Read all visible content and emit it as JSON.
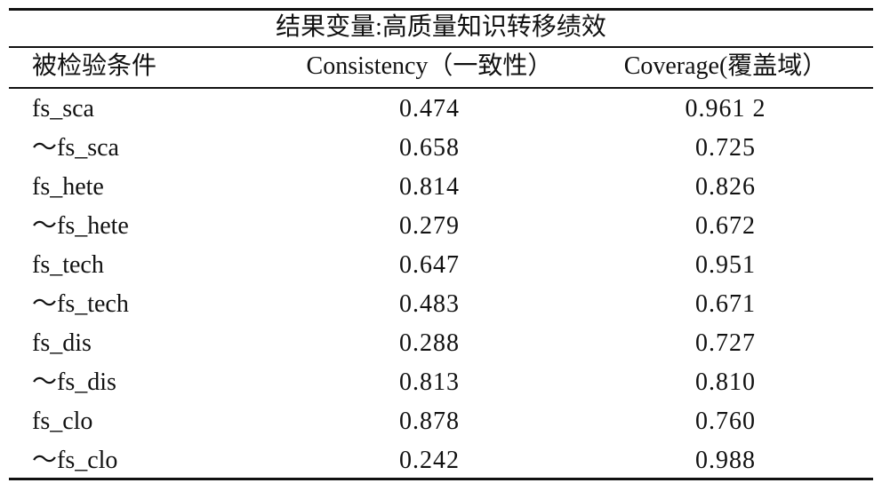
{
  "table": {
    "title": "结果变量:高质量知识转移绩效",
    "header": [
      "被检验条件",
      "Consistency（一致性）",
      "Coverage(覆盖域）"
    ],
    "rows": [
      [
        "fs_sca",
        "0.474",
        "0.961 2"
      ],
      [
        "～fs_sca",
        "0.658",
        "0.725"
      ],
      [
        "fs_hete",
        "0.814",
        "0.826"
      ],
      [
        "～fs_hete",
        "0.279",
        "0.672"
      ],
      [
        "fs_tech",
        "0.647",
        "0.951"
      ],
      [
        "～fs_tech",
        "0.483",
        "0.671"
      ],
      [
        "fs_dis",
        "0.288",
        "0.727"
      ],
      [
        "～fs_dis",
        "0.813",
        "0.810"
      ],
      [
        "fs_clo",
        "0.878",
        "0.760"
      ],
      [
        "～fs_clo",
        "0.242",
        "0.988"
      ]
    ]
  }
}
